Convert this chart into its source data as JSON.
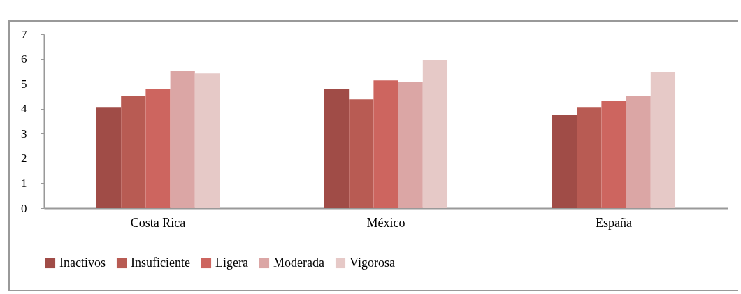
{
  "chart_data": {
    "type": "bar",
    "categories": [
      "Costa Rica",
      "México",
      "España"
    ],
    "series": [
      {
        "name": "Inactivos",
        "color": "#a04c47",
        "values": [
          4.07,
          4.8,
          3.74
        ]
      },
      {
        "name": "Insuficiente",
        "color": "#b85b53",
        "values": [
          4.52,
          4.38,
          4.07
        ]
      },
      {
        "name": "Ligera",
        "color": "#cd655f",
        "values": [
          4.78,
          5.14,
          4.3
        ]
      },
      {
        "name": "Moderada",
        "color": "#dba6a5",
        "values": [
          5.53,
          5.08,
          4.52
        ]
      },
      {
        "name": "Vigorosa",
        "color": "#e6c9c7",
        "values": [
          5.42,
          5.96,
          5.48
        ]
      }
    ],
    "ylim": [
      0,
      7
    ],
    "yticks": [
      0,
      1,
      2,
      3,
      4,
      5,
      6,
      7
    ],
    "grid": false,
    "legend": "bottom"
  }
}
